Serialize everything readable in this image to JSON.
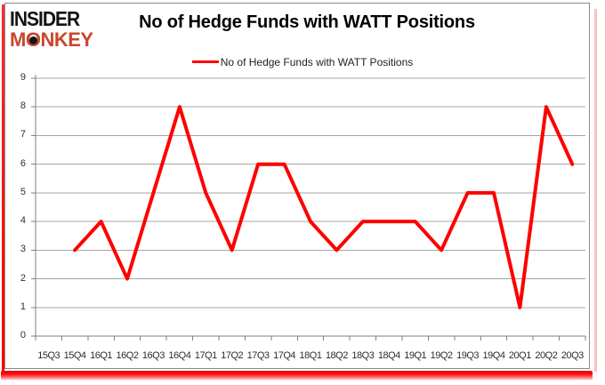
{
  "logo": {
    "line1": "INSIDER",
    "line2": "MONKEY"
  },
  "header": {
    "title": "No of Hedge Funds with WATT Positions"
  },
  "legend": {
    "label": "No of Hedge Funds with WATT Positions"
  },
  "colors": {
    "series_red": "#ff0000",
    "logo_red": "#c9462c",
    "gridline_gray": "#a6a6a6",
    "axis_gray": "#808080",
    "shadow_red": "#ff0000"
  },
  "chart_data": {
    "type": "line",
    "title": "No of Hedge Funds with WATT Positions",
    "categories": [
      "15Q3",
      "15Q4",
      "16Q1",
      "16Q2",
      "16Q3",
      "16Q4",
      "17Q1",
      "17Q2",
      "17Q3",
      "17Q4",
      "18Q1",
      "18Q2",
      "18Q3",
      "18Q4",
      "19Q1",
      "19Q2",
      "19Q3",
      "19Q4",
      "20Q1",
      "20Q2",
      "20Q3"
    ],
    "series": [
      {
        "name": "No of Hedge Funds with WATT Positions",
        "color": "#ff0000",
        "values": [
          null,
          3,
          4,
          2,
          5,
          8,
          5,
          3,
          6,
          6,
          4,
          3,
          4,
          4,
          4,
          3,
          5,
          5,
          1,
          8,
          6
        ]
      }
    ],
    "ylim": [
      0,
      9
    ],
    "yticks": [
      0,
      1,
      2,
      3,
      4,
      5,
      6,
      7,
      8,
      9
    ],
    "xlabel": "",
    "ylabel": "",
    "grid": true,
    "legend_position": "top-center"
  }
}
